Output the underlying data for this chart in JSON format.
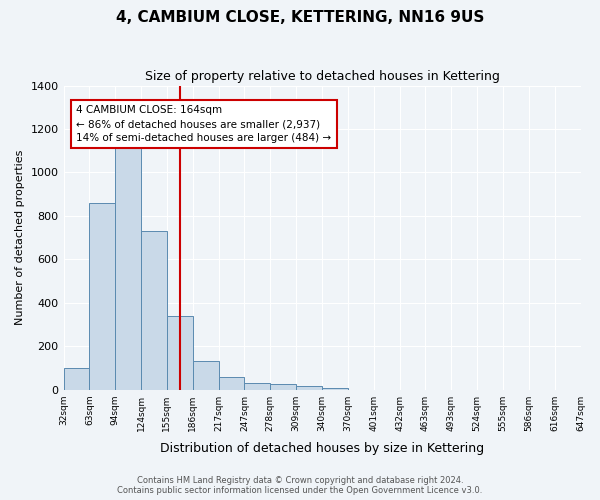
{
  "title": "4, CAMBIUM CLOSE, KETTERING, NN16 9US",
  "subtitle": "Size of property relative to detached houses in Kettering",
  "xlabel": "Distribution of detached houses by size in Kettering",
  "ylabel": "Number of detached properties",
  "bar_values": [
    100,
    860,
    1150,
    730,
    340,
    130,
    60,
    30,
    25,
    15,
    8,
    0,
    0,
    0,
    0,
    0,
    0,
    0,
    0,
    0
  ],
  "bin_labels": [
    "32sqm",
    "63sqm",
    "94sqm",
    "124sqm",
    "155sqm",
    "186sqm",
    "217sqm",
    "247sqm",
    "278sqm",
    "309sqm",
    "340sqm",
    "370sqm",
    "401sqm",
    "432sqm",
    "463sqm",
    "493sqm",
    "524sqm",
    "555sqm",
    "586sqm",
    "616sqm",
    "647sqm"
  ],
  "bar_color": "#c9d9e8",
  "bar_edge_color": "#5a8ab0",
  "vline_x": 4.52,
  "vline_color": "#cc0000",
  "annotation_text": "4 CAMBIUM CLOSE: 164sqm\n← 86% of detached houses are smaller (2,937)\n14% of semi-detached houses are larger (484) →",
  "annotation_box_color": "#ffffff",
  "annotation_box_edge": "#cc0000",
  "ylim": [
    0,
    1400
  ],
  "yticks": [
    0,
    200,
    400,
    600,
    800,
    1000,
    1200,
    1400
  ],
  "footer_line1": "Contains HM Land Registry data © Crown copyright and database right 2024.",
  "footer_line2": "Contains public sector information licensed under the Open Government Licence v3.0.",
  "bg_color": "#f0f4f8",
  "plot_bg_color": "#f0f4f8"
}
